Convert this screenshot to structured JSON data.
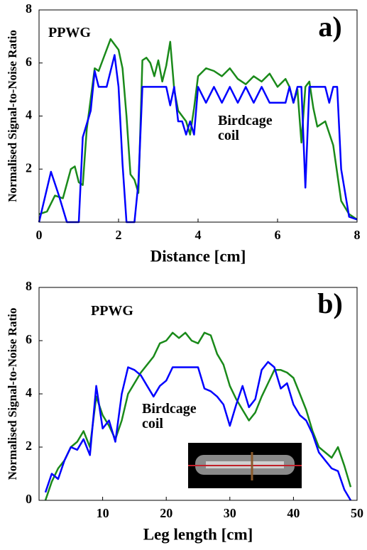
{
  "chart_data": [
    {
      "type": "line",
      "panel_label": "a)",
      "xlabel": "Distance [cm]",
      "ylabel": "Normalised Signal-to-Noise Ratio",
      "xlim": [
        0,
        8
      ],
      "ylim": [
        0,
        8
      ],
      "xticks": [
        0,
        2,
        4,
        6,
        8
      ],
      "yticks": [
        2,
        4,
        6,
        8
      ],
      "series": [
        {
          "name": "PPWG",
          "color": "#1a8a1a",
          "x": [
            0,
            0.2,
            0.4,
            0.6,
            0.8,
            0.9,
            1.0,
            1.1,
            1.2,
            1.4,
            1.5,
            1.6,
            1.8,
            2.0,
            2.1,
            2.2,
            2.3,
            2.4,
            2.5,
            2.6,
            2.7,
            2.8,
            2.9,
            3.0,
            3.1,
            3.2,
            3.3,
            3.4,
            3.5,
            3.6,
            3.7,
            3.8,
            3.9,
            4.0,
            4.2,
            4.4,
            4.6,
            4.8,
            5.0,
            5.2,
            5.4,
            5.6,
            5.8,
            6.0,
            6.2,
            6.3,
            6.4,
            6.5,
            6.6,
            6.7,
            6.8,
            6.9,
            7.0,
            7.2,
            7.4,
            7.6,
            7.8,
            8.0
          ],
          "values": [
            0.3,
            0.4,
            1.0,
            0.9,
            2.0,
            2.1,
            1.5,
            1.4,
            3.5,
            5.8,
            5.7,
            6.1,
            6.9,
            6.5,
            5.8,
            4.0,
            1.8,
            1.6,
            1.1,
            6.1,
            6.2,
            6.0,
            5.5,
            6.1,
            5.3,
            5.9,
            6.8,
            5.0,
            4.2,
            4.0,
            3.8,
            3.3,
            4.3,
            5.5,
            5.8,
            5.7,
            5.5,
            5.8,
            5.4,
            5.2,
            5.5,
            5.3,
            5.6,
            5.1,
            5.4,
            5.1,
            4.5,
            5.0,
            3.0,
            5.1,
            5.3,
            4.3,
            3.6,
            3.8,
            2.9,
            0.8,
            0.3,
            0.1
          ]
        },
        {
          "name": "Birdcage coil",
          "color": "#0000ff",
          "x": [
            0,
            0.3,
            0.5,
            0.7,
            1.0,
            1.1,
            1.3,
            1.4,
            1.5,
            1.7,
            1.9,
            2.0,
            2.1,
            2.2,
            2.4,
            2.5,
            2.6,
            3.0,
            3.2,
            3.3,
            3.4,
            3.5,
            3.6,
            3.7,
            3.8,
            3.9,
            4.0,
            4.2,
            4.4,
            4.6,
            4.8,
            5.0,
            5.2,
            5.4,
            5.6,
            5.8,
            6.0,
            6.2,
            6.3,
            6.4,
            6.5,
            6.6,
            6.7,
            6.8,
            7.0,
            7.2,
            7.3,
            7.4,
            7.5,
            7.6,
            7.8,
            8.0
          ],
          "values": [
            0.0,
            1.9,
            1.0,
            0.0,
            0.0,
            3.2,
            4.2,
            5.7,
            5.1,
            5.1,
            6.3,
            5.1,
            2.2,
            0.0,
            0.0,
            1.5,
            5.1,
            5.1,
            5.1,
            4.4,
            5.1,
            3.8,
            3.8,
            3.3,
            3.8,
            3.3,
            5.1,
            4.5,
            5.1,
            4.5,
            5.1,
            4.5,
            5.1,
            4.5,
            5.1,
            4.5,
            4.5,
            4.5,
            5.1,
            4.5,
            5.1,
            5.1,
            1.3,
            5.1,
            5.1,
            5.1,
            4.5,
            5.1,
            5.1,
            2.0,
            0.2,
            0.1
          ]
        }
      ]
    },
    {
      "type": "line",
      "panel_label": "b)",
      "xlabel": "Leg length [cm]",
      "ylabel": "Normalised Signal-to-Noise Ratio",
      "xlim": [
        0,
        50
      ],
      "ylim": [
        0,
        8
      ],
      "xticks": [
        10,
        20,
        30,
        40,
        50
      ],
      "yticks": [
        0,
        2,
        4,
        6,
        8
      ],
      "series": [
        {
          "name": "PPWG",
          "color": "#1a8a1a",
          "x": [
            1,
            2,
            3,
            4,
            5,
            6,
            7,
            8,
            9,
            10,
            11,
            12,
            13,
            14,
            15,
            16,
            17,
            18,
            19,
            20,
            21,
            22,
            23,
            24,
            25,
            26,
            27,
            28,
            29,
            30,
            31,
            32,
            33,
            34,
            35,
            36,
            37,
            38,
            39,
            40,
            41,
            42,
            43,
            44,
            45,
            46,
            47,
            48,
            49
          ],
          "values": [
            0.0,
            0.7,
            1.2,
            1.5,
            2.0,
            2.2,
            2.6,
            2.0,
            3.9,
            3.2,
            2.8,
            2.3,
            3.0,
            4.0,
            4.4,
            4.8,
            5.1,
            5.4,
            5.9,
            6.0,
            6.3,
            6.1,
            6.3,
            6.0,
            5.9,
            6.3,
            6.2,
            5.5,
            5.1,
            4.3,
            3.8,
            3.4,
            3.0,
            3.3,
            3.9,
            4.4,
            4.9,
            4.9,
            4.8,
            4.6,
            4.0,
            3.4,
            2.6,
            2.0,
            1.8,
            1.6,
            2.0,
            1.3,
            0.5
          ]
        },
        {
          "name": "Birdcage coil",
          "color": "#0000ff",
          "x": [
            1,
            2,
            3,
            4,
            5,
            6,
            7,
            8,
            9,
            10,
            11,
            12,
            13,
            14,
            15,
            16,
            17,
            18,
            19,
            20,
            21,
            22,
            23,
            24,
            25,
            26,
            27,
            28,
            29,
            30,
            31,
            32,
            33,
            34,
            35,
            36,
            37,
            38,
            39,
            40,
            41,
            42,
            43,
            44,
            45,
            46,
            47,
            48,
            49
          ],
          "values": [
            0.3,
            1.0,
            0.8,
            1.5,
            2.0,
            1.9,
            2.3,
            1.7,
            4.3,
            2.7,
            3.0,
            2.2,
            4.0,
            5.0,
            4.9,
            4.7,
            4.3,
            3.9,
            4.3,
            4.5,
            5.0,
            5.0,
            5.0,
            5.0,
            5.0,
            4.2,
            4.1,
            3.9,
            3.6,
            2.8,
            3.6,
            4.3,
            3.5,
            3.8,
            4.9,
            5.2,
            5.0,
            4.2,
            4.4,
            3.6,
            3.2,
            3.0,
            2.5,
            1.8,
            1.5,
            1.2,
            1.1,
            0.4,
            0.0
          ]
        }
      ]
    }
  ]
}
